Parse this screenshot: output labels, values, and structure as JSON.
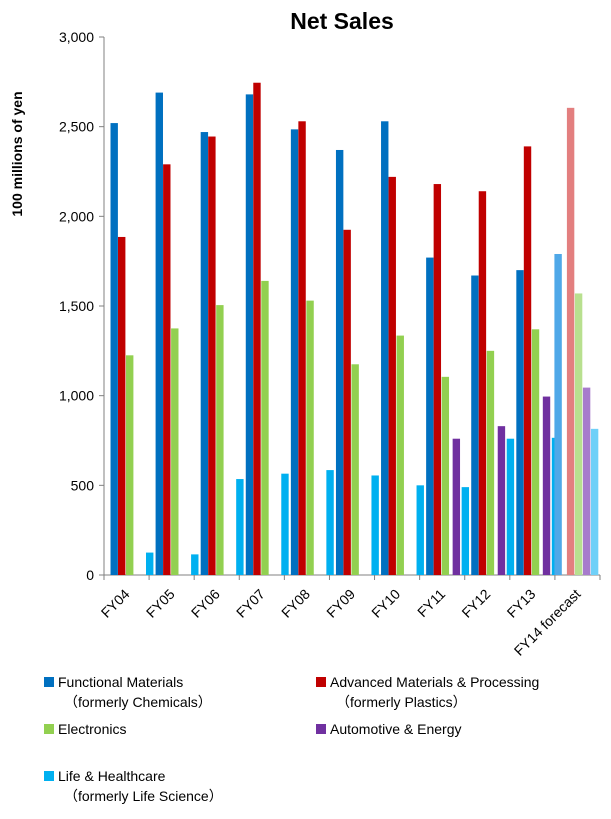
{
  "chart_data": {
    "type": "bar",
    "title": "Net Sales",
    "ylabel": "100 millions of yen",
    "xlabel": "",
    "ylim": [
      0,
      3000
    ],
    "y_ticks": [
      "0",
      "500",
      "1,000",
      "1,500",
      "2,000",
      "2,500",
      "3,000"
    ],
    "y_tick_values": [
      0,
      500,
      1000,
      1500,
      2000,
      2500,
      3000
    ],
    "categories": [
      "FY04",
      "FY05",
      "FY06",
      "FY07",
      "FY08",
      "FY09",
      "FY10",
      "FY11",
      "FY12",
      "FY13",
      "FY14 forecast"
    ],
    "forecast_category": "FY14 forecast",
    "grid": false,
    "legend_position": "bottom",
    "series": [
      {
        "legend_label": "Functional Materials\n（formerly Chemicals）",
        "color": "#0070C0",
        "forecast_color": "#4F9BE0",
        "values": [
          2520,
          2690,
          2470,
          2680,
          2485,
          2370,
          2530,
          1770,
          1670,
          1700,
          null
        ]
      },
      {
        "legend_label": "Advanced Materials & Processing\n（formerly Plastics）",
        "color": "#C00000",
        "forecast_color": "#E37F7F",
        "values": [
          1885,
          2290,
          2445,
          2745,
          2530,
          1925,
          2220,
          2180,
          2140,
          2390,
          2605
        ]
      },
      {
        "legend_label": "Electronics",
        "color": "#92D050",
        "forecast_color": "#B8E08F",
        "values": [
          1225,
          1375,
          1505,
          1640,
          1530,
          1175,
          1335,
          1105,
          1250,
          1370,
          1570
        ]
      },
      {
        "legend_label": "Automotive & Energy",
        "color": "#7030A0",
        "forecast_color": "#A77BCC",
        "values": [
          null,
          null,
          null,
          null,
          null,
          null,
          null,
          760,
          830,
          995,
          1045
        ]
      },
      {
        "legend_label": "Life & Healthcare\n（formerly Life Science）",
        "color": "#00B0F0",
        "forecast_color": "#6FD0F8",
        "values": [
          125,
          115,
          535,
          565,
          585,
          555,
          500,
          490,
          760,
          765,
          815
        ]
      }
    ],
    "extra_bars": [
      {
        "category": "FY14 forecast",
        "value": 1790,
        "color": "#4FA8E8",
        "position": "before-first-series"
      }
    ]
  }
}
